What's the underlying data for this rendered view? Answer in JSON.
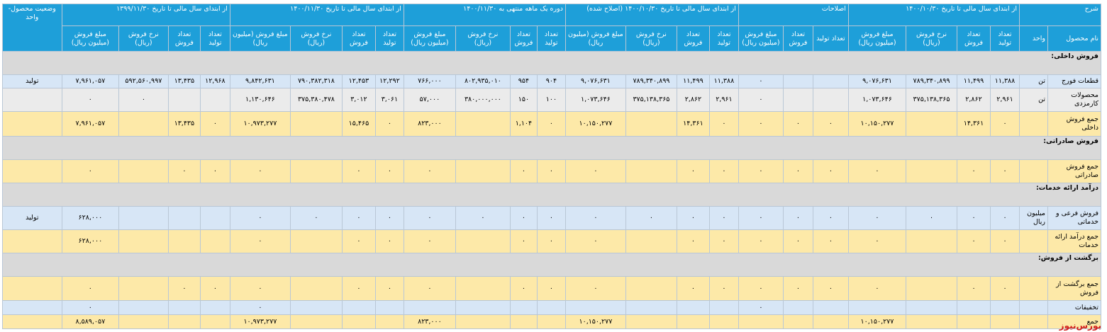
{
  "header": {
    "groups": [
      {
        "title": "شرح",
        "columns": [
          "نام محصول",
          "واحد"
        ]
      },
      {
        "title": "از ابتدای سال مالی تا تاریخ ۱۴۰۰/۱۰/۳۰",
        "columns": [
          "تعداد تولید",
          "تعداد فروش",
          "نرخ فروش (ریال)",
          "مبلغ فروش (میلیون ریال)"
        ]
      },
      {
        "title": "اصلاحات",
        "columns": [
          "تعداد تولید",
          "تعداد فروش",
          "مبلغ فروش (میلیون ریال)"
        ]
      },
      {
        "title": "از ابتدای سال مالی تا تاریخ ۱۴۰۰/۱۰/۳۰ (اصلاح شده)",
        "columns": [
          "تعداد تولید",
          "تعداد فروش",
          "نرخ فروش (ریال)",
          "مبلغ فروش (میلیون ریال)"
        ]
      },
      {
        "title": "دوره یک ماهه منتهی به ۱۴۰۰/۱۱/۳۰",
        "columns": [
          "تعداد تولید",
          "تعداد فروش",
          "نرخ فروش (ریال)",
          "مبلغ فروش (میلیون ریال)"
        ]
      },
      {
        "title": "از ابتدای سال مالی تا تاریخ ۱۴۰۰/۱۱/۳۰",
        "columns": [
          "تعداد تولید",
          "تعداد فروش",
          "نرخ فروش (ریال)",
          "مبلغ فروش (میلیون ریال)"
        ]
      },
      {
        "title": "از ابتدای سال مالی تا تاریخ ۱۳۹۹/۱۱/۳۰",
        "columns": [
          "تعداد تولید",
          "تعداد فروش",
          "نرخ فروش (ریال)",
          "مبلغ فروش (میلیون ریال)"
        ]
      },
      {
        "title": "وضعیت محصول-واحد",
        "columns": []
      }
    ],
    "color": "#1e9fd9"
  },
  "rows": [
    {
      "color": "#d9d9d9",
      "cells": [
        "فروش داخلی:"
      ]
    },
    {
      "color": "#d7e6f6",
      "cells": [
        "قطعات فورج",
        "تن",
        "۱۱,۳۸۸",
        "۱۱,۴۹۹",
        "۷۸۹,۳۴۰,۸۹۹",
        "۹,۰۷۶,۶۳۱",
        null,
        null,
        "۰",
        "۱۱,۳۸۸",
        "۱۱,۴۹۹",
        "۷۸۹,۳۴۰,۸۹۹",
        "۹,۰۷۶,۶۳۱",
        "۹۰۴",
        "۹۵۴",
        "۸۰۲,۹۳۵,۰۱۰",
        "۷۶۶,۰۰۰",
        "۱۲,۲۹۲",
        "۱۲,۴۵۳",
        "۷۹۰,۳۸۲,۳۱۸",
        "۹,۸۴۲,۶۳۱",
        "۱۲,۹۶۸",
        "۱۳,۴۳۵",
        "۵۹۲,۵۶۰,۹۹۷",
        "۷,۹۶۱,۰۵۷",
        "تولید"
      ]
    },
    {
      "color": "#ebebeb",
      "cells": [
        "محصولات کارمزدی",
        "تن",
        "۲,۹۶۱",
        "۲,۸۶۲",
        "۳۷۵,۱۳۸,۳۶۵",
        "۱,۰۷۳,۶۴۶",
        null,
        null,
        "۰",
        "۲,۹۶۱",
        "۲,۸۶۲",
        "۳۷۵,۱۳۸,۳۶۵",
        "۱,۰۷۳,۶۴۶",
        "۱۰۰",
        "۱۵۰",
        "۳۸۰,۰۰۰,۰۰۰",
        "۵۷,۰۰۰",
        "۳,۰۶۱",
        "۳,۰۱۲",
        "۳۷۵,۳۸۰,۴۷۸",
        "۱,۱۳۰,۶۴۶",
        null,
        null,
        "۰",
        "۰",
        null
      ]
    },
    {
      "color": "#fde9a8",
      "cells": [
        "جمع فروش داخلی",
        null,
        "۰",
        "۱۴,۳۶۱",
        null,
        "۱۰,۱۵۰,۲۷۷",
        "۰",
        "۰",
        "۰",
        "۰",
        "۱۴,۳۶۱",
        null,
        "۱۰,۱۵۰,۲۷۷",
        "۰",
        "۱,۱۰۴",
        null,
        "۸۲۳,۰۰۰",
        "۰",
        "۱۵,۴۶۵",
        null,
        "۱۰,۹۷۳,۲۷۷",
        "۰",
        "۱۳,۴۳۵",
        null,
        "۷,۹۶۱,۰۵۷",
        null
      ]
    },
    {
      "color": "#d9d9d9",
      "cells": [
        "فروش صادراتی:"
      ]
    },
    {
      "color": "#fde9a8",
      "cells": [
        "جمع فروش صادراتی",
        null,
        "۰",
        "۰",
        null,
        "۰",
        "۰",
        "۰",
        "۰",
        "۰",
        "۰",
        null,
        "۰",
        "۰",
        "۰",
        null,
        "۰",
        "۰",
        "۰",
        null,
        "۰",
        "۰",
        "۰",
        null,
        "۰",
        null
      ]
    },
    {
      "color": "#d9d9d9",
      "cells": [
        "درآمد ارائه خدمات:"
      ]
    },
    {
      "color": "#d7e6f6",
      "cells": [
        "فروش فرعی و خدماتی",
        "میلیون ریال",
        "۰",
        "۰",
        "۰",
        "۰",
        "۰",
        "۰",
        "۰",
        "۰",
        "۰",
        "۰",
        "۰",
        "۰",
        "۰",
        "۰",
        "۰",
        "۰",
        "۰",
        "۰",
        "۰",
        null,
        null,
        null,
        "۶۲۸,۰۰۰",
        "تولید"
      ]
    },
    {
      "color": "#fde9a8",
      "cells": [
        "جمع درآمد ارائه خدمات",
        null,
        "۰",
        "۰",
        null,
        "۰",
        "۰",
        "۰",
        "۰",
        "۰",
        "۰",
        null,
        "۰",
        "۰",
        "۰",
        null,
        "۰",
        "۰",
        "۰",
        null,
        "۰",
        null,
        null,
        null,
        "۶۲۸,۰۰۰",
        null
      ]
    },
    {
      "color": "#d9d9d9",
      "cells": [
        "برگشت از فروش:"
      ]
    },
    {
      "color": "#fde9a8",
      "cells": [
        "جمع برگشت از فروش",
        null,
        "۰",
        "۰",
        null,
        "۰",
        "۰",
        "۰",
        "۰",
        "۰",
        "۰",
        null,
        "۰",
        "۰",
        "۰",
        null,
        "۰",
        "۰",
        "۰",
        null,
        "۰",
        "۰",
        "۰",
        null,
        "۰",
        null
      ]
    },
    {
      "color": "#d7e6f6",
      "cells": [
        "تخفیفات",
        null,
        null,
        null,
        null,
        null,
        null,
        null,
        "۰",
        null,
        null,
        null,
        null,
        null,
        null,
        null,
        null,
        null,
        null,
        null,
        "۰",
        null,
        null,
        null,
        "۰",
        null
      ]
    },
    {
      "color": "#fde9a8",
      "cells": [
        "جمع",
        null,
        null,
        null,
        null,
        "۱۰,۱۵۰,۲۷۷",
        null,
        null,
        null,
        null,
        null,
        null,
        "۱۰,۱۵۰,۲۷۷",
        null,
        null,
        null,
        "۸۲۳,۰۰۰",
        null,
        null,
        null,
        "۱۰,۹۷۳,۲۷۷",
        null,
        null,
        null,
        "۸,۵۸۹,۰۵۷",
        null
      ]
    }
  ],
  "watermark": "بورس‌نیوز"
}
